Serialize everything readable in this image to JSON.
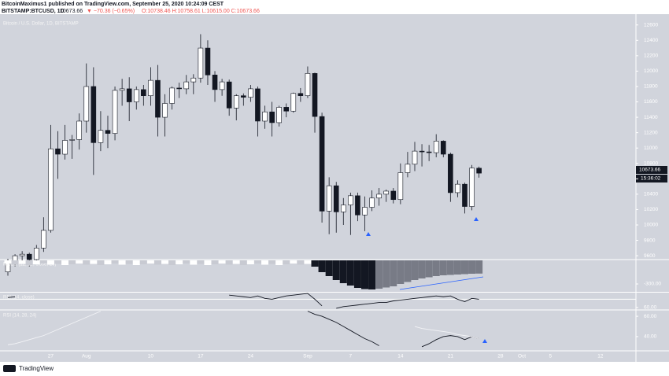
{
  "header": {
    "publisher": "BitcoinMaximus1 published on TradingView.com, September 25, 2020 10:24:09 CEST",
    "symbol": "BITSTAMP:BTCUSD, 1D",
    "price": "10673.66",
    "change": "▼ −70.36 (−0.65%)",
    "ohlc": "O:10738.46 H:10758.61 L:10615.00 C:10673.66",
    "countdown": "15:36:02",
    "brand": "TradingView"
  },
  "chart_data": [
    {
      "type": "candlestick",
      "title": "Bitcoin / U.S. Dollar, 1D, BITSTAMP",
      "up_color": "#ffffff",
      "down_color": "#131722",
      "categories": [
        null,
        null,
        null,
        null,
        null,
        null,
        "27",
        null,
        null,
        null,
        null,
        "Aug",
        null,
        null,
        null,
        null,
        null,
        null,
        null,
        null,
        "10",
        null,
        null,
        null,
        null,
        null,
        null,
        "17",
        null,
        null,
        null,
        null,
        null,
        null,
        "24",
        null,
        null,
        null,
        null,
        null,
        null,
        null,
        "Sep",
        null,
        null,
        null,
        null,
        null,
        "7",
        null,
        null,
        null,
        null,
        null,
        null,
        "14",
        null,
        null,
        null,
        null,
        null,
        null,
        "21",
        null,
        null,
        null,
        null,
        null,
        null,
        "28",
        null,
        null,
        "Oct",
        null,
        null,
        null,
        "5",
        null,
        null,
        null,
        null,
        null,
        null,
        "12"
      ],
      "open": [
        9390,
        9520,
        9600,
        9620,
        9550,
        9700,
        9930,
        10990,
        10920,
        11100,
        11110,
        11350,
        11800,
        11070,
        11230,
        11190,
        11750,
        11770,
        11600,
        11760,
        11680,
        11880,
        11400,
        11580,
        11780,
        11770,
        11860,
        11910,
        12300,
        11950,
        11760,
        11860,
        11520,
        11680,
        11660,
        11770,
        11350,
        11470,
        11330,
        11530,
        11480,
        11710,
        11680,
        11970,
        11410,
        10180,
        10510,
        10170,
        10260,
        10380,
        10130,
        10230,
        10350,
        10400,
        10440,
        10330,
        10680,
        10790,
        10960,
        10950,
        10940,
        11090,
        10920,
        10420,
        10530,
        10240,
        10738.46,
        null,
        null,
        null,
        null,
        null,
        null,
        null,
        null,
        null,
        null,
        null,
        null,
        null,
        null,
        null,
        null,
        null
      ],
      "high": [
        9560,
        9620,
        9660,
        9640,
        9740,
        10100,
        11300,
        11220,
        11300,
        11170,
        11450,
        12100,
        12050,
        11480,
        11420,
        11800,
        11900,
        11920,
        11800,
        11820,
        12050,
        12080,
        11700,
        11800,
        11850,
        11950,
        11960,
        12480,
        12400,
        12000,
        11900,
        11890,
        11700,
        11710,
        11820,
        11800,
        11550,
        11600,
        11550,
        11580,
        11720,
        11780,
        12060,
        11980,
        11460,
        10620,
        10560,
        10350,
        10420,
        10420,
        10370,
        10450,
        10480,
        10460,
        10480,
        10800,
        10950,
        11080,
        11050,
        11040,
        11180,
        11100,
        10940,
        10580,
        10550,
        10780,
        10758.61,
        null,
        null,
        null,
        null,
        null,
        null,
        null,
        null,
        null,
        null,
        null,
        null,
        null,
        null,
        null,
        null,
        null
      ],
      "low": [
        9340,
        9460,
        9520,
        9460,
        9540,
        9650,
        9900,
        10600,
        10850,
        10860,
        10980,
        11200,
        10650,
        10960,
        11000,
        11100,
        11550,
        11350,
        11500,
        11550,
        11550,
        11150,
        11150,
        11500,
        11650,
        11700,
        11700,
        11850,
        11820,
        11600,
        11680,
        11420,
        11360,
        11550,
        11600,
        11150,
        11250,
        11150,
        11280,
        11400,
        11460,
        11600,
        11650,
        11200,
        10030,
        9880,
        9900,
        10000,
        9870,
        10050,
        9920,
        10180,
        10250,
        10300,
        10280,
        10270,
        10620,
        10700,
        10760,
        10830,
        10880,
        10880,
        10300,
        10360,
        10150,
        10190,
        10615,
        null,
        null,
        null,
        null,
        null,
        null,
        null,
        null,
        null,
        null,
        null,
        null,
        null,
        null,
        null,
        null,
        null
      ],
      "close": [
        9520,
        9600,
        9620,
        9550,
        9700,
        9930,
        10990,
        10920,
        11100,
        11110,
        11350,
        11800,
        11070,
        11230,
        11190,
        11750,
        11770,
        11600,
        11760,
        11680,
        11880,
        11400,
        11580,
        11780,
        11770,
        11860,
        11910,
        12300,
        11950,
        11760,
        11860,
        11520,
        11680,
        11660,
        11770,
        11350,
        11470,
        11330,
        11530,
        11480,
        11710,
        11680,
        11970,
        11410,
        10180,
        10510,
        10170,
        10260,
        10380,
        10130,
        10230,
        10350,
        10400,
        10440,
        10330,
        10680,
        10790,
        10960,
        10950,
        10940,
        11090,
        10920,
        10420,
        10530,
        10240,
        10740,
        10673.66,
        null,
        null,
        null,
        null,
        null,
        null,
        null,
        null,
        null,
        null,
        null,
        null,
        null,
        null,
        null,
        null,
        null
      ],
      "ylim": [
        9550,
        12720
      ],
      "yticks": [
        9600,
        9800,
        10000,
        10200,
        10400,
        10600,
        10800,
        11000,
        11200,
        11400,
        11600,
        11800,
        12000,
        12200,
        12400,
        12600
      ]
    },
    {
      "type": "bar",
      "title": "MACD (12, 26, close, 26)",
      "values": [
        -40,
        -55,
        -45,
        -60,
        -50,
        -40,
        -55,
        -45,
        -60,
        -50,
        -40,
        -55,
        -45,
        -60,
        -50,
        -40,
        -55,
        -45,
        -60,
        -50,
        -40,
        -55,
        -45,
        -60,
        -50,
        -40,
        -55,
        -45,
        -60,
        -50,
        -40,
        -55,
        -45,
        -60,
        -50,
        -40,
        -55,
        -45,
        -60,
        -50,
        -40,
        -55,
        -45,
        -80,
        -150,
        -200,
        -250,
        -290,
        -320,
        -350,
        -365,
        -370,
        -360,
        -345,
        -330,
        -300,
        -275,
        -250,
        -230,
        -215,
        -200,
        -190,
        -185,
        -180,
        -175,
        -170,
        -168
      ],
      "colors": [
        "#ffffff",
        "#c8cad2",
        "#ffffff",
        "#c8cad2",
        "#ffffff",
        "#c8cad2",
        "#ffffff",
        "#c8cad2",
        "#ffffff",
        "#c8cad2",
        "#ffffff",
        "#c8cad2",
        "#ffffff",
        "#c8cad2",
        "#ffffff",
        "#c8cad2",
        "#ffffff",
        "#c8cad2",
        "#ffffff",
        "#c8cad2",
        "#ffffff",
        "#c8cad2",
        "#ffffff",
        "#c8cad2",
        "#ffffff",
        "#c8cad2",
        "#ffffff",
        "#c8cad2",
        "#ffffff",
        "#c8cad2",
        "#ffffff",
        "#c8cad2",
        "#ffffff",
        "#c8cad2",
        "#ffffff",
        "#c8cad2",
        "#ffffff",
        "#c8cad2",
        "#ffffff",
        "#c8cad2",
        "#ffffff",
        "#c8cad2",
        "#ffffff",
        "#131722",
        "#131722",
        "#131722",
        "#131722",
        "#131722",
        "#131722",
        "#131722",
        "#131722",
        "#131722",
        "#787b86",
        "#787b86",
        "#787b86",
        "#787b86",
        "#787b86",
        "#787b86",
        "#787b86",
        "#787b86",
        "#787b86",
        "#787b86",
        "#787b86",
        "#787b86",
        "#787b86",
        "#787b86",
        "#787b86"
      ],
      "ylim": [
        -400,
        10
      ],
      "yticks": [
        {
          "value": -300,
          "label": "-300.00"
        }
      ]
    },
    {
      "type": "line",
      "title": "RSI (14, close)",
      "hline": 70,
      "series": [
        {
          "color": "#131722",
          "values": [
            72,
            73,
            null,
            null,
            null,
            null,
            null,
            null,
            null,
            null,
            null,
            null,
            null,
            null,
            null,
            null,
            null,
            null,
            null,
            null,
            null,
            null,
            null,
            null,
            null,
            null,
            null,
            null,
            null,
            null,
            null,
            75,
            74,
            73,
            72,
            74,
            71,
            70,
            72,
            74,
            75,
            76,
            77,
            70,
            62,
            null,
            59,
            61,
            62,
            63,
            64,
            65,
            66,
            66,
            68,
            69,
            70,
            71,
            72,
            73,
            74,
            73,
            74,
            70,
            67,
            71,
            70
          ]
        }
      ],
      "ylim": [
        58,
        78
      ],
      "yticks": [
        {
          "value": 60,
          "label": "60.00"
        }
      ]
    },
    {
      "type": "line",
      "title": "RSI (14, 28, 24)",
      "series": [
        {
          "color": "#131722",
          "values": [
            null,
            null,
            null,
            null,
            null,
            null,
            null,
            null,
            null,
            null,
            null,
            null,
            null,
            null,
            null,
            null,
            null,
            null,
            null,
            null,
            null,
            null,
            null,
            null,
            null,
            null,
            null,
            null,
            null,
            null,
            null,
            null,
            null,
            null,
            null,
            null,
            null,
            null,
            null,
            null,
            null,
            null,
            65,
            62,
            60,
            57,
            54,
            50,
            46,
            42,
            38,
            35,
            31,
            null,
            null,
            null,
            null,
            null,
            30,
            33,
            37,
            40,
            41,
            40,
            37,
            40,
            38
          ]
        },
        {
          "color": "#f2f3f6",
          "values": [
            32,
            33,
            35,
            37,
            39,
            41,
            44,
            47,
            50,
            53,
            56,
            59,
            62,
            65,
            null,
            null,
            null,
            null,
            null,
            null,
            null,
            null,
            null,
            null,
            null,
            null,
            null,
            null,
            null,
            null,
            null,
            null,
            null,
            null,
            null,
            null,
            null,
            null,
            null,
            null,
            null,
            null,
            null,
            null,
            null,
            null,
            null,
            null,
            null,
            null,
            null,
            null,
            null,
            null,
            null,
            null,
            null,
            50,
            48,
            47,
            46,
            45,
            44,
            42,
            41,
            40,
            38
          ]
        }
      ],
      "ylim": [
        26,
        65.5
      ],
      "yticks": [
        {
          "value": 60,
          "label": "60.00"
        },
        {
          "value": 40,
          "label": "40.00"
        }
      ]
    }
  ]
}
